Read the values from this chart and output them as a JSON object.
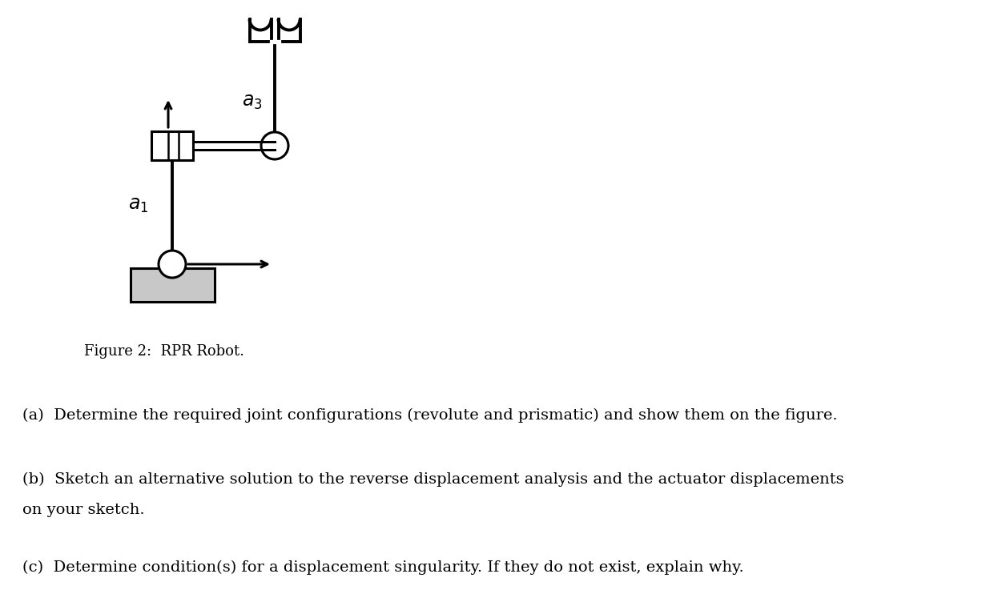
{
  "figure_caption": "Figure 2:  RPR Robot.",
  "question_a": "(a)  Determine the required joint configurations (revolute and prismatic) and show them on the figure.",
  "question_b_line1": "(b)  Sketch an alternative solution to the reverse displacement analysis and the actuator displacements",
  "question_b_line2": "on your sketch.",
  "question_c": "(c)  Determine condition(s) for a displacement singularity. If they do not exist, explain why.",
  "bg_color": "#ffffff",
  "line_color": "#000000",
  "gray_color": "#c8c8c8",
  "fig_width": 12.41,
  "fig_height": 7.57,
  "dpi": 100
}
